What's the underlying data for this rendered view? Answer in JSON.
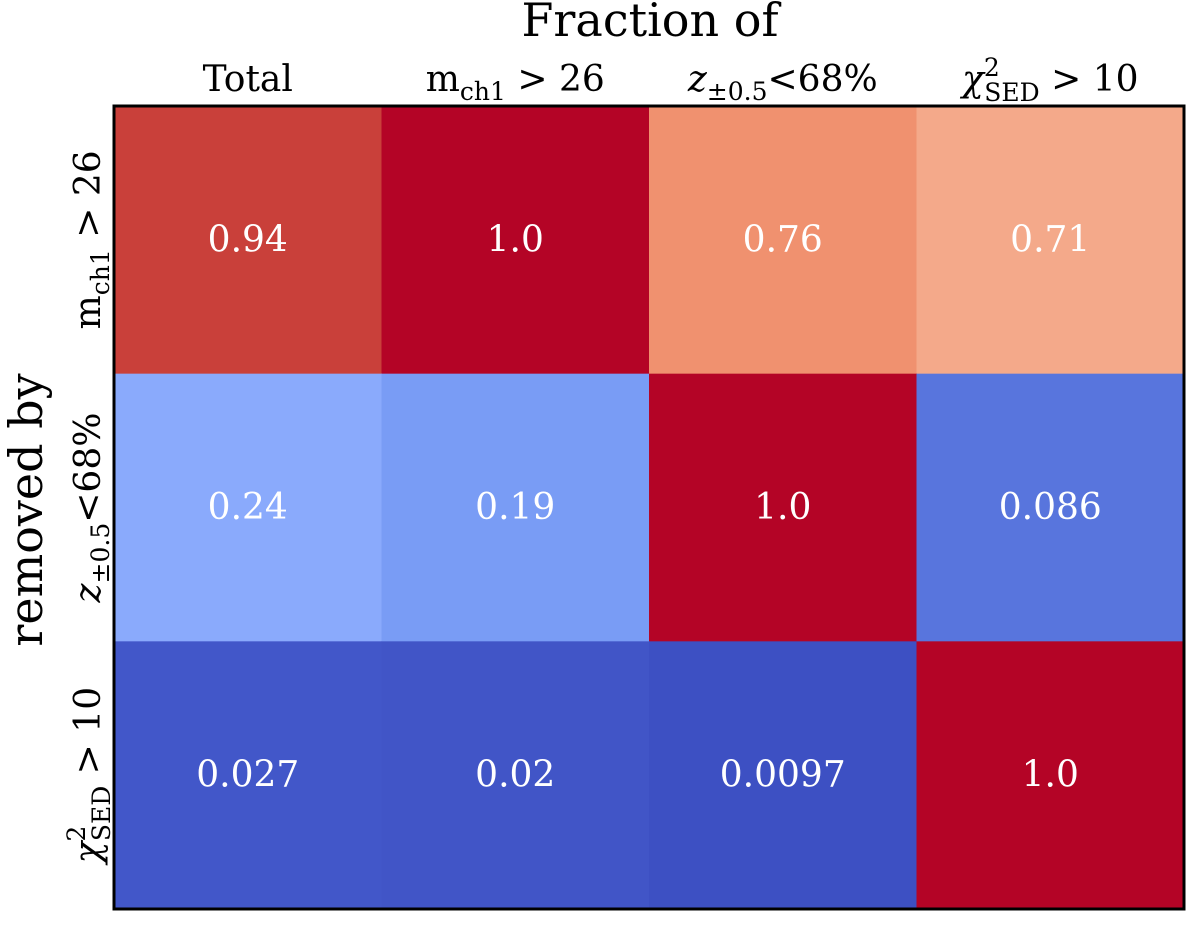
{
  "chart_data": {
    "type": "heatmap",
    "title": "Fraction of",
    "ylabel": "removed by",
    "columns": [
      {
        "main": "Total",
        "sub": "",
        "sup": "",
        "rest": ""
      },
      {
        "main": "m",
        "sub": "ch1",
        "sup": "",
        "rest": " > 26"
      },
      {
        "main": "z",
        "sub": "±0.5",
        "sup": "",
        "rest": "<68%"
      },
      {
        "main": "χ",
        "sub": "SED",
        "sup": "2",
        "rest": " > 10"
      }
    ],
    "rows": [
      {
        "main": "m",
        "sub": "ch1",
        "sup": "",
        "rest": " > 26"
      },
      {
        "main": "z",
        "sub": "±0.5",
        "sup": "",
        "rest": "<68%"
      },
      {
        "main": "χ",
        "sub": "SED",
        "sup": "2",
        "rest": " > 10"
      }
    ],
    "values": [
      [
        0.94,
        1.0,
        0.76,
        0.71
      ],
      [
        0.24,
        0.19,
        1.0,
        0.086
      ],
      [
        0.027,
        0.02,
        0.0097,
        1.0
      ]
    ],
    "labels": [
      [
        "0.94",
        "1.0",
        "0.76",
        "0.71"
      ],
      [
        "0.24",
        "0.19",
        "1.0",
        "0.086"
      ],
      [
        "0.027",
        "0.02",
        "0.0097",
        "1.0"
      ]
    ],
    "colormap": "coolwarm",
    "colors": [
      [
        "#c9403a",
        "#b40426",
        "#f0916f",
        "#f4a98a"
      ],
      [
        "#8aaafc",
        "#799cf5",
        "#b40426",
        "#5875dd"
      ],
      [
        "#4257c9",
        "#4155c7",
        "#3d50c3",
        "#b40426"
      ]
    ]
  }
}
